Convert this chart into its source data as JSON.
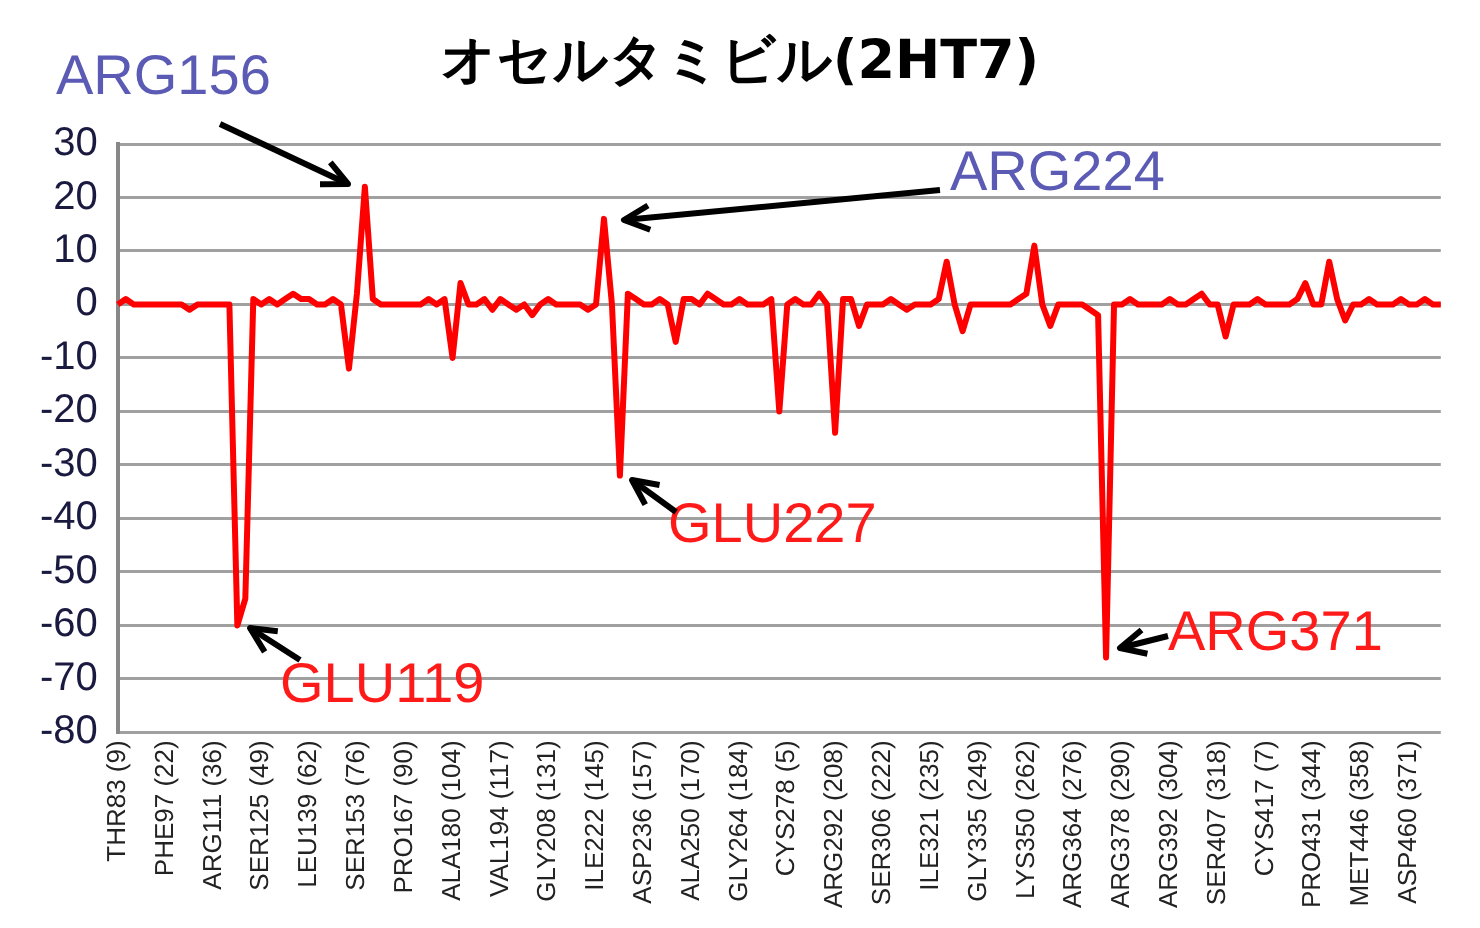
{
  "chart_data": {
    "type": "line",
    "title": "オセルタミビル(2HT7)",
    "categories": [
      "THR83 (9)",
      null,
      null,
      null,
      null,
      null,
      "PHE97 (22)",
      null,
      null,
      null,
      null,
      null,
      "ARG111 (36)",
      null,
      null,
      null,
      null,
      null,
      "SER125 (49)",
      null,
      null,
      null,
      null,
      null,
      "LEU139 (62)",
      null,
      null,
      null,
      null,
      null,
      "SER153 (76)",
      null,
      null,
      null,
      null,
      null,
      "PRO167 (90)",
      null,
      null,
      null,
      null,
      null,
      "ALA180 (104)",
      null,
      null,
      null,
      null,
      null,
      "VAL194 (117)",
      null,
      null,
      null,
      null,
      null,
      "GLY208 (131)",
      null,
      null,
      null,
      null,
      null,
      "ILE222 (145)",
      null,
      null,
      null,
      null,
      null,
      "ASP236 (157)",
      null,
      null,
      null,
      null,
      null,
      "ALA250 (170)",
      null,
      null,
      null,
      null,
      null,
      "GLY264 (184)",
      null,
      null,
      null,
      null,
      null,
      "CYS278 (5)",
      null,
      null,
      null,
      null,
      null,
      "ARG292 (208)",
      null,
      null,
      null,
      null,
      null,
      "SER306 (222)",
      null,
      null,
      null,
      null,
      null,
      "ILE321 (235)",
      null,
      null,
      null,
      null,
      null,
      "GLY335 (249)",
      null,
      null,
      null,
      null,
      null,
      "LYS350 (262)",
      null,
      null,
      null,
      null,
      null,
      "ARG364 (276)",
      null,
      null,
      null,
      null,
      null,
      "ARG378 (290)",
      null,
      null,
      null,
      null,
      null,
      "ARG392 (304)",
      null,
      null,
      null,
      null,
      null,
      "SER407 (318)",
      null,
      null,
      null,
      null,
      null,
      "CYS417 (7)",
      null,
      null,
      null,
      null,
      null,
      "PRO431 (344)",
      null,
      null,
      null,
      null,
      null,
      "MET446 (358)",
      null,
      null,
      null,
      null,
      null,
      "ASP460 (371)",
      null,
      null,
      null,
      null
    ],
    "series": [
      {
        "color": "#ff0000",
        "values": [
          0,
          1,
          0,
          0,
          0,
          0,
          0,
          0,
          0,
          -1,
          0,
          0,
          0,
          0,
          0,
          -60,
          -55,
          1,
          0,
          1,
          0,
          1,
          2,
          1,
          1,
          0,
          0,
          1,
          0,
          -12,
          2,
          22,
          1,
          0,
          0,
          0,
          0,
          0,
          0,
          1,
          0,
          1,
          -10,
          4,
          0,
          0,
          1,
          -1,
          1,
          0,
          -1,
          0,
          -2,
          0,
          1,
          0,
          0,
          0,
          0,
          -1,
          0,
          16,
          0,
          -32,
          2,
          1,
          0,
          0,
          1,
          0,
          -7,
          1,
          1,
          0,
          2,
          1,
          0,
          0,
          1,
          0,
          0,
          0,
          1,
          -20,
          0,
          1,
          0,
          0,
          2,
          0,
          -24,
          1,
          1,
          -4,
          0,
          0,
          0,
          1,
          0,
          -1,
          0,
          0,
          0,
          1,
          8,
          0,
          -5,
          0,
          0,
          0,
          0,
          0,
          0,
          1,
          2,
          11,
          0,
          -4,
          0,
          0,
          0,
          0,
          -1,
          -2,
          -66,
          0,
          0,
          1,
          0,
          0,
          0,
          0,
          1,
          0,
          0,
          1,
          2,
          0,
          0,
          -6,
          0,
          0,
          0,
          1,
          0,
          0,
          0,
          0,
          1,
          4,
          0,
          0,
          8,
          1,
          -3,
          0,
          0,
          1,
          0,
          0,
          0,
          1,
          0,
          0,
          1,
          0,
          0
        ]
      }
    ],
    "ylim": [
      -80,
      30
    ],
    "yticks": [
      -80,
      -70,
      -60,
      -50,
      -40,
      -30,
      -20,
      -10,
      0,
      10,
      20,
      30
    ],
    "grid": "y",
    "legend": false,
    "marker": "none",
    "line_style": "solid",
    "annotations": [
      "ARG156",
      "ARG224",
      "GLU119",
      "GLU227",
      "ARG371"
    ]
  }
}
